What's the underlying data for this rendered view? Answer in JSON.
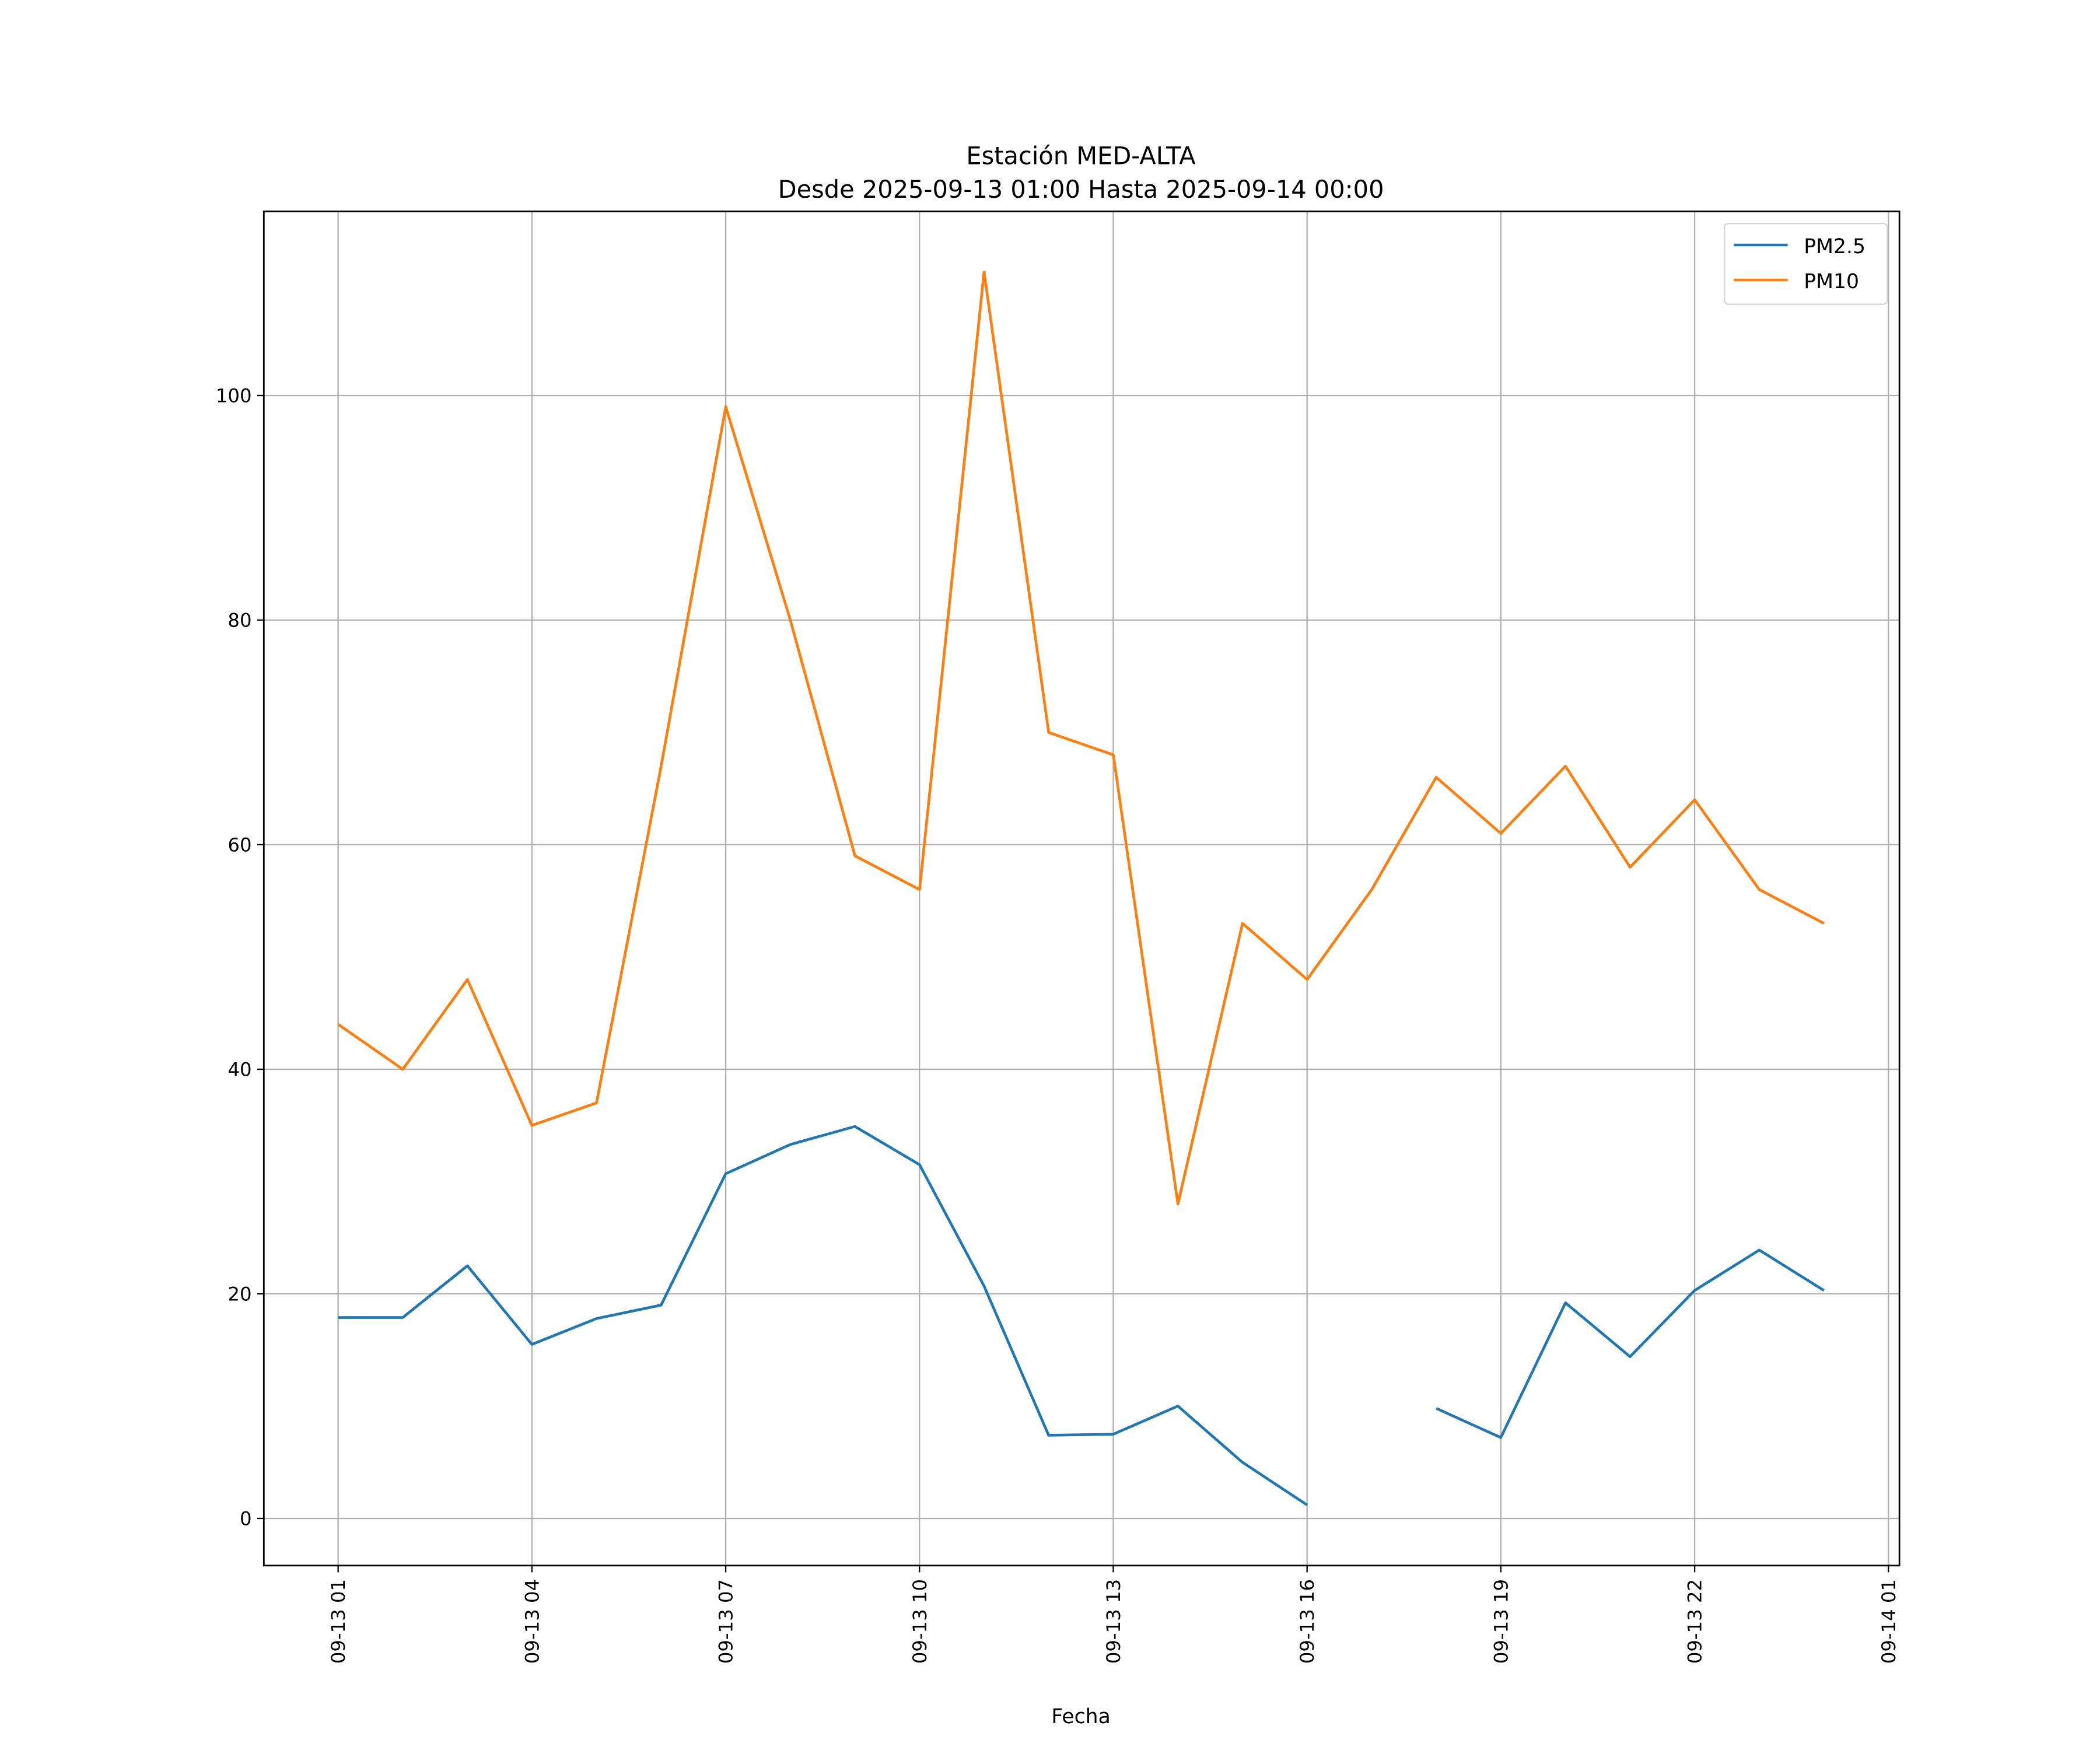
{
  "chart_data": {
    "type": "line",
    "title": "Estación MED-ALTA",
    "subtitle": "Desde 2025-09-13 01:00 Hasta 2025-09-14 00:00",
    "xlabel": "Fecha",
    "ylabel": "",
    "x": [
      "09-13 01:00",
      "09-13 02:00",
      "09-13 03:00",
      "09-13 04:00",
      "09-13 05:00",
      "09-13 06:00",
      "09-13 07:00",
      "09-13 08:00",
      "09-13 09:00",
      "09-13 10:00",
      "09-13 11:00",
      "09-13 12:00",
      "09-13 13:00",
      "09-13 14:00",
      "09-13 15:00",
      "09-13 16:00",
      "09-13 17:00",
      "09-13 18:00",
      "09-13 19:00",
      "09-13 20:00",
      "09-13 21:00",
      "09-13 22:00",
      "09-13 23:00",
      "09-14 00:00"
    ],
    "x_hours_from_start": [
      0,
      1,
      2,
      3,
      4,
      5,
      6,
      7,
      8,
      9,
      10,
      11,
      12,
      13,
      14,
      15,
      16,
      17,
      18,
      19,
      20,
      21,
      22,
      23
    ],
    "series": [
      {
        "name": "PM2.5",
        "color": "#1f77b4",
        "values": [
          17.9,
          17.9,
          22.5,
          15.5,
          17.8,
          19.0,
          30.7,
          33.3,
          34.9,
          31.5,
          20.7,
          7.4,
          7.5,
          10.0,
          5.0,
          1.2,
          null,
          9.8,
          7.2,
          19.2,
          14.4,
          20.3,
          23.9,
          20.3
        ]
      },
      {
        "name": "PM10",
        "color": "#ff7f0e",
        "values": [
          44,
          40,
          48,
          35,
          37,
          67,
          99,
          80,
          59,
          56,
          111,
          70,
          68,
          28,
          53,
          48,
          56,
          66,
          61,
          67,
          58,
          64,
          56,
          53
        ]
      }
    ],
    "xticks": [
      {
        "h": 0,
        "label": "09-13 01"
      },
      {
        "h": 3,
        "label": "09-13 04"
      },
      {
        "h": 6,
        "label": "09-13 07"
      },
      {
        "h": 9,
        "label": "09-13 10"
      },
      {
        "h": 12,
        "label": "09-13 13"
      },
      {
        "h": 15,
        "label": "09-13 16"
      },
      {
        "h": 18,
        "label": "09-13 19"
      },
      {
        "h": 21,
        "label": "09-13 22"
      },
      {
        "h": 24,
        "label": "09-14 01"
      }
    ],
    "yticks": [
      {
        "v": 0,
        "label": "0"
      },
      {
        "v": 20,
        "label": "20"
      },
      {
        "v": 40,
        "label": "40"
      },
      {
        "v": 60,
        "label": "60"
      },
      {
        "v": 80,
        "label": "80"
      },
      {
        "v": 100,
        "label": "100"
      }
    ],
    "xlim_hours": [
      -1.15,
      24.17
    ],
    "ylim": [
      -4.2,
      116.4
    ],
    "grid": true,
    "legend_position": "top-right"
  }
}
